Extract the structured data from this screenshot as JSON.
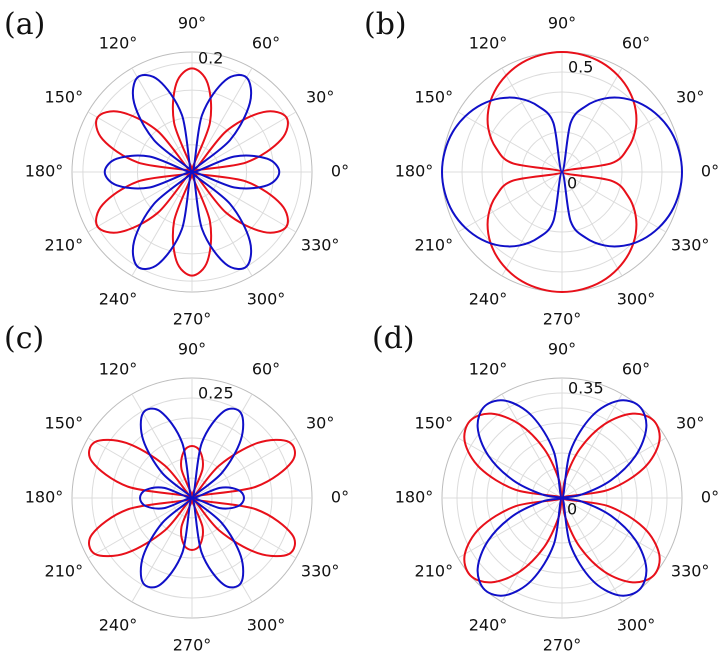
{
  "chart_data": [
    {
      "type": "polar",
      "label": "(a)",
      "rlim": [
        0,
        0.22
      ],
      "rgrid": [
        0.05,
        0.1,
        0.15
      ],
      "rticks": [
        0.2
      ],
      "grid": true,
      "thetaticks": [
        {
          "value": 0,
          "label": "0°"
        },
        {
          "value": 30,
          "label": "30°"
        },
        {
          "value": 60,
          "label": "60°"
        },
        {
          "value": 90,
          "label": "90°"
        },
        {
          "value": 120,
          "label": "120°"
        },
        {
          "value": 150,
          "label": "150°"
        },
        {
          "value": 180,
          "label": "180°"
        },
        {
          "value": 210,
          "label": "210°"
        },
        {
          "value": 240,
          "label": "240°"
        },
        {
          "value": 270,
          "label": "270°"
        },
        {
          "value": 300,
          "label": "300°"
        },
        {
          "value": 330,
          "label": "330°"
        }
      ],
      "theta": [
        0,
        10,
        20,
        30,
        40,
        50,
        60,
        70,
        80,
        90,
        100,
        110,
        120,
        130,
        140,
        150,
        160,
        170,
        180,
        190,
        200,
        210,
        220,
        230,
        240,
        250,
        260,
        270,
        280,
        290,
        300,
        310,
        320,
        330,
        340,
        350
      ],
      "series": [
        {
          "color": "#e8101a",
          "values": [
            0,
            0.101,
            0.174,
            0.2,
            0.171,
            0.098,
            0,
            0.096,
            0.165,
            0.19,
            0.165,
            0.096,
            0,
            0.098,
            0.171,
            0.2,
            0.174,
            0.101,
            0,
            0.101,
            0.174,
            0.2,
            0.171,
            0.098,
            0,
            0.096,
            0.165,
            0.19,
            0.165,
            0.096,
            0,
            0.098,
            0.171,
            0.2,
            0.174,
            0.101
          ]
        },
        {
          "color": "#1010c8",
          "values": [
            0.16,
            0.14,
            0.083,
            0,
            0.091,
            0.165,
            0.2,
            0.179,
            0.106,
            0,
            0.106,
            0.179,
            0.2,
            0.165,
            0.091,
            0,
            0.083,
            0.14,
            0.16,
            0.14,
            0.083,
            0,
            0.091,
            0.165,
            0.2,
            0.179,
            0.106,
            0,
            0.106,
            0.179,
            0.2,
            0.165,
            0.091,
            0,
            0.083,
            0.14
          ]
        }
      ]
    },
    {
      "type": "polar",
      "label": "(b)",
      "rlim": [
        0,
        0.6
      ],
      "rgrid": [
        0.1,
        0.2,
        0.3,
        0.4
      ],
      "rticks": [
        0,
        0.5
      ],
      "grid": true,
      "thetaticks": [
        {
          "value": 0,
          "label": "0°"
        },
        {
          "value": 30,
          "label": "30°"
        },
        {
          "value": 60,
          "label": "60°"
        },
        {
          "value": 90,
          "label": "90°"
        },
        {
          "value": 120,
          "label": "120°"
        },
        {
          "value": 150,
          "label": "150°"
        },
        {
          "value": 180,
          "label": "180°"
        },
        {
          "value": 210,
          "label": "210°"
        },
        {
          "value": 240,
          "label": "240°"
        },
        {
          "value": 270,
          "label": "270°"
        },
        {
          "value": 300,
          "label": "300°"
        },
        {
          "value": 330,
          "label": "330°"
        }
      ],
      "theta": [
        0,
        10,
        20,
        30,
        40,
        50,
        60,
        70,
        80,
        90,
        100,
        110,
        120,
        130,
        140,
        150,
        160,
        170,
        180,
        190,
        200,
        210,
        220,
        230,
        240,
        250,
        260,
        270,
        280,
        290,
        300,
        310,
        320,
        330,
        340,
        350
      ],
      "series": [
        {
          "color": "#e8101a",
          "values": [
            0,
            0.25,
            0.351,
            0.424,
            0.481,
            0.525,
            0.558,
            0.582,
            0.595,
            0.6,
            0.595,
            0.582,
            0.558,
            0.525,
            0.481,
            0.424,
            0.351,
            0.25,
            0,
            0.25,
            0.351,
            0.424,
            0.481,
            0.525,
            0.558,
            0.582,
            0.595,
            0.6,
            0.595,
            0.582,
            0.558,
            0.525,
            0.481,
            0.424,
            0.351,
            0.25
          ]
        },
        {
          "color": "#1010c8",
          "values": [
            0.6,
            0.595,
            0.582,
            0.558,
            0.525,
            0.481,
            0.424,
            0.351,
            0.25,
            0,
            0.25,
            0.351,
            0.424,
            0.481,
            0.525,
            0.558,
            0.582,
            0.595,
            0.6,
            0.595,
            0.582,
            0.558,
            0.525,
            0.481,
            0.424,
            0.351,
            0.25,
            0,
            0.25,
            0.351,
            0.424,
            0.481,
            0.525,
            0.558,
            0.582,
            0.595
          ]
        }
      ]
    },
    {
      "type": "polar",
      "label": "(c)",
      "rlim": [
        0,
        0.3
      ],
      "rgrid": [
        0.05,
        0.1,
        0.15,
        0.2
      ],
      "rticks": [
        0.25
      ],
      "grid": true,
      "thetaticks": [
        {
          "value": 0,
          "label": "0°"
        },
        {
          "value": 30,
          "label": "30°"
        },
        {
          "value": 60,
          "label": "60°"
        },
        {
          "value": 90,
          "label": "90°"
        },
        {
          "value": 120,
          "label": "120°"
        },
        {
          "value": 150,
          "label": "150°"
        },
        {
          "value": 180,
          "label": "180°"
        },
        {
          "value": 210,
          "label": "210°"
        },
        {
          "value": 240,
          "label": "240°"
        },
        {
          "value": 270,
          "label": "270°"
        },
        {
          "value": 300,
          "label": "300°"
        },
        {
          "value": 330,
          "label": "330°"
        }
      ],
      "theta": [
        0,
        10,
        20,
        30,
        40,
        50,
        60,
        70,
        80,
        90,
        100,
        110,
        120,
        130,
        140,
        150,
        160,
        170,
        180,
        190,
        200,
        210,
        220,
        230,
        240,
        250,
        260,
        270,
        280,
        290,
        300,
        310,
        320,
        330,
        340,
        350
      ],
      "series": [
        {
          "color": "#e8101a",
          "values": [
            0,
            0.162,
            0.266,
            0.28,
            0.214,
            0.106,
            0,
            0.077,
            0.118,
            0.13,
            0.118,
            0.077,
            0,
            0.106,
            0.214,
            0.28,
            0.266,
            0.162,
            0,
            0.162,
            0.266,
            0.28,
            0.214,
            0.106,
            0,
            0.077,
            0.118,
            0.13,
            0.118,
            0.077,
            0,
            0.106,
            0.214,
            0.28,
            0.266,
            0.162
          ]
        },
        {
          "color": "#1010c8",
          "values": [
            0.13,
            0.117,
            0.074,
            0,
            0.097,
            0.19,
            0.245,
            0.23,
            0.139,
            0,
            0.139,
            0.23,
            0.245,
            0.19,
            0.097,
            0,
            0.074,
            0.117,
            0.13,
            0.117,
            0.074,
            0,
            0.097,
            0.19,
            0.245,
            0.23,
            0.139,
            0,
            0.139,
            0.23,
            0.245,
            0.19,
            0.097,
            0,
            0.074,
            0.117
          ]
        }
      ]
    },
    {
      "type": "polar",
      "label": "(d)",
      "rlim": [
        0,
        0.4
      ],
      "rgrid": [
        0.05,
        0.1,
        0.15,
        0.2,
        0.25,
        0.3
      ],
      "rticks": [
        0,
        0.35
      ],
      "grid": true,
      "thetaticks": [
        {
          "value": 0,
          "label": "0°"
        },
        {
          "value": 30,
          "label": "30°"
        },
        {
          "value": 60,
          "label": "60°"
        },
        {
          "value": 90,
          "label": "90°"
        },
        {
          "value": 120,
          "label": "120°"
        },
        {
          "value": 150,
          "label": "150°"
        },
        {
          "value": 180,
          "label": "180°"
        },
        {
          "value": 210,
          "label": "210°"
        },
        {
          "value": 240,
          "label": "240°"
        },
        {
          "value": 270,
          "label": "270°"
        },
        {
          "value": 300,
          "label": "300°"
        },
        {
          "value": 330,
          "label": "330°"
        }
      ],
      "theta": [
        0,
        10,
        20,
        30,
        40,
        50,
        60,
        70,
        80,
        90,
        100,
        110,
        120,
        130,
        140,
        150,
        160,
        170,
        180,
        190,
        200,
        210,
        220,
        230,
        240,
        250,
        260,
        270,
        280,
        290,
        300,
        310,
        320,
        330,
        340,
        350
      ],
      "series": [
        {
          "color": "#e8101a",
          "values": [
            0,
            0.157,
            0.29,
            0.374,
            0.4,
            0.367,
            0.284,
            0.174,
            0.066,
            0,
            0.066,
            0.174,
            0.284,
            0.367,
            0.4,
            0.374,
            0.29,
            0.157,
            0,
            0.157,
            0.29,
            0.374,
            0.4,
            0.367,
            0.284,
            0.174,
            0.066,
            0,
            0.066,
            0.174,
            0.284,
            0.367,
            0.4,
            0.374,
            0.29,
            0.157
          ]
        },
        {
          "color": "#1010c8",
          "values": [
            0,
            0.066,
            0.174,
            0.284,
            0.367,
            0.4,
            0.374,
            0.29,
            0.157,
            0,
            0.157,
            0.29,
            0.374,
            0.4,
            0.367,
            0.284,
            0.174,
            0.066,
            0,
            0.066,
            0.174,
            0.284,
            0.367,
            0.4,
            0.374,
            0.29,
            0.157,
            0,
            0.157,
            0.29,
            0.374,
            0.4,
            0.367,
            0.284,
            0.174,
            0.066
          ]
        }
      ]
    }
  ]
}
